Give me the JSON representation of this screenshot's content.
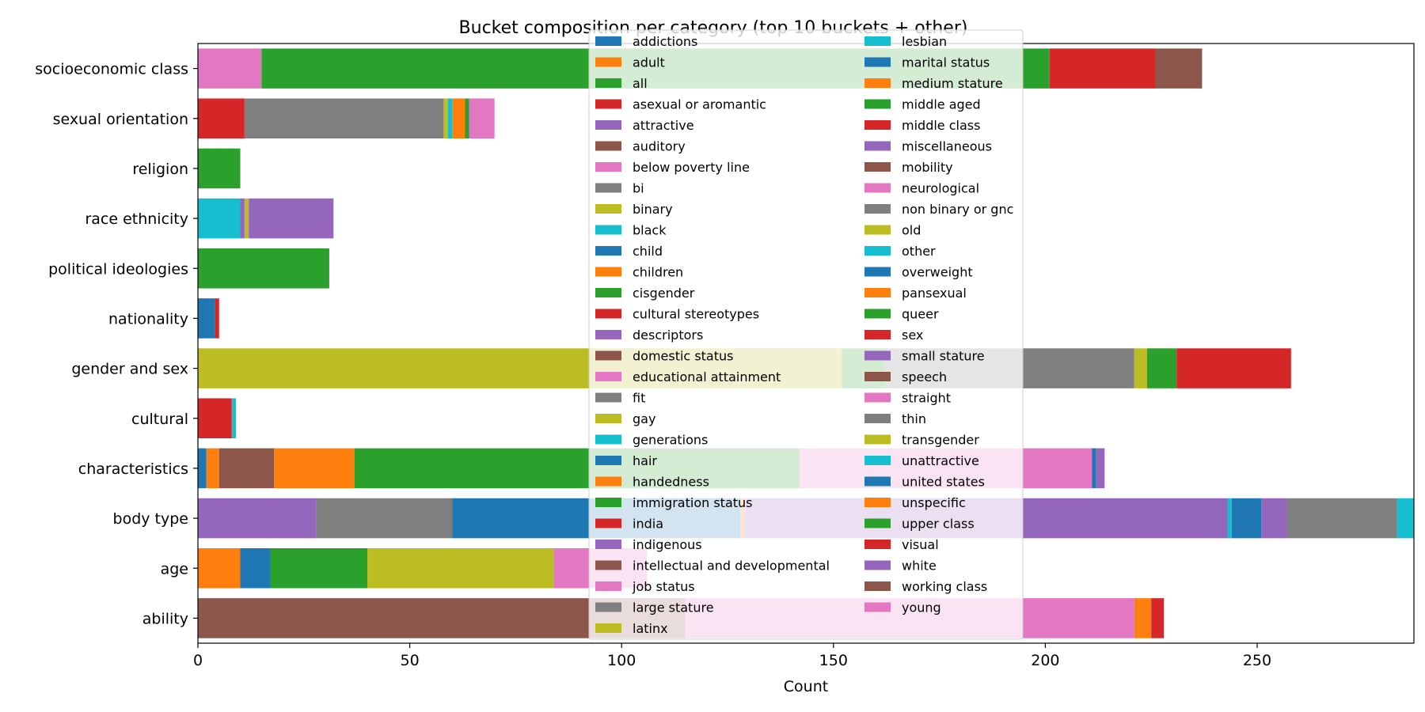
{
  "chart_data": {
    "type": "bar",
    "orientation": "horizontal",
    "stacked": true,
    "title": "Bucket composition per category (top 10 buckets + other)",
    "xlabel": "Count",
    "ylabel": "",
    "xlim": [
      0,
      287
    ],
    "xticks": [
      0,
      50,
      100,
      150,
      200,
      250
    ],
    "grid": false,
    "legend_position": "top-center",
    "categories": [
      "ability",
      "age",
      "body type",
      "characteristics",
      "cultural",
      "gender and sex",
      "nationality",
      "political ideologies",
      "race ethnicity",
      "religion",
      "sexual orientation",
      "socioeconomic class"
    ],
    "series": [
      {
        "name": "addictions",
        "color": "#1f77b4",
        "values": [
          0,
          0,
          0,
          0,
          0,
          0,
          0,
          0,
          0,
          0,
          0,
          0
        ]
      },
      {
        "name": "adult",
        "color": "#ff7f0e",
        "values": [
          0,
          0,
          0,
          0,
          0,
          0,
          0,
          0,
          0,
          0,
          0,
          0
        ]
      },
      {
        "name": "all",
        "color": "#2ca02c",
        "values": [
          0,
          0,
          0,
          0,
          0,
          0,
          0,
          0,
          0,
          0,
          0,
          0
        ]
      },
      {
        "name": "asexual or aromantic",
        "color": "#d62728",
        "values": [
          0,
          0,
          0,
          0,
          0,
          0,
          0,
          0,
          0,
          0,
          11,
          0
        ]
      },
      {
        "name": "attractive",
        "color": "#9467bd",
        "values": [
          0,
          0,
          28,
          0,
          0,
          0,
          0,
          0,
          0,
          0,
          0,
          0
        ]
      },
      {
        "name": "auditory",
        "color": "#8c564b",
        "values": [
          115,
          0,
          0,
          0,
          0,
          0,
          0,
          0,
          0,
          0,
          0,
          0
        ]
      },
      {
        "name": "below poverty line",
        "color": "#e377c2",
        "values": [
          0,
          0,
          0,
          0,
          0,
          0,
          0,
          0,
          0,
          0,
          0,
          15
        ]
      },
      {
        "name": "bi",
        "color": "#7f7f7f",
        "values": [
          0,
          0,
          0,
          0,
          0,
          0,
          0,
          0,
          0,
          0,
          47,
          0
        ]
      },
      {
        "name": "binary",
        "color": "#bcbd22",
        "values": [
          0,
          0,
          0,
          0,
          0,
          152,
          0,
          0,
          0,
          0,
          1,
          0
        ]
      },
      {
        "name": "black",
        "color": "#17becf",
        "values": [
          0,
          0,
          0,
          0,
          0,
          0,
          0,
          0,
          10,
          0,
          1,
          0
        ]
      },
      {
        "name": "child",
        "color": "#1f77b4",
        "values": [
          0,
          0,
          0,
          2,
          0,
          0,
          0,
          0,
          0,
          0,
          0,
          0
        ]
      },
      {
        "name": "children",
        "color": "#ff7f0e",
        "values": [
          0,
          10,
          0,
          3,
          0,
          0,
          0,
          0,
          0,
          0,
          3,
          0
        ]
      },
      {
        "name": "cisgender",
        "color": "#2ca02c",
        "values": [
          0,
          0,
          0,
          0,
          0,
          10,
          0,
          0,
          0,
          0,
          1,
          0
        ]
      },
      {
        "name": "cultural stereotypes",
        "color": "#d62728",
        "values": [
          0,
          0,
          0,
          0,
          8,
          0,
          0,
          0,
          0,
          0,
          0,
          0
        ]
      },
      {
        "name": "descriptors",
        "color": "#9467bd",
        "values": [
          0,
          0,
          0,
          0,
          0,
          0,
          0,
          0,
          1,
          0,
          0,
          0
        ]
      },
      {
        "name": "domestic status",
        "color": "#8c564b",
        "values": [
          0,
          0,
          0,
          13,
          0,
          0,
          0,
          0,
          0,
          0,
          0,
          0
        ]
      },
      {
        "name": "educational attainment",
        "color": "#e377c2",
        "values": [
          0,
          0,
          0,
          0,
          0,
          0,
          0,
          0,
          0,
          0,
          0,
          0
        ]
      },
      {
        "name": "fit",
        "color": "#7f7f7f",
        "values": [
          0,
          0,
          32,
          0,
          0,
          0,
          0,
          0,
          0,
          0,
          0,
          0
        ]
      },
      {
        "name": "gay",
        "color": "#bcbd22",
        "values": [
          0,
          0,
          0,
          0,
          0,
          0,
          0,
          0,
          1,
          0,
          0,
          0
        ]
      },
      {
        "name": "generations",
        "color": "#17becf",
        "values": [
          0,
          0,
          0,
          0,
          1,
          0,
          0,
          0,
          0,
          0,
          0,
          0
        ]
      },
      {
        "name": "hair",
        "color": "#1f77b4",
        "values": [
          0,
          7,
          68,
          0,
          0,
          0,
          4,
          0,
          0,
          0,
          0,
          0
        ]
      },
      {
        "name": "handedness",
        "color": "#ff7f0e",
        "values": [
          0,
          0,
          1,
          19,
          0,
          0,
          0,
          0,
          0,
          0,
          0,
          0
        ]
      },
      {
        "name": "immigration status",
        "color": "#2ca02c",
        "values": [
          0,
          23,
          0,
          105,
          0,
          0,
          0,
          31,
          0,
          10,
          0,
          186
        ]
      },
      {
        "name": "india",
        "color": "#d62728",
        "values": [
          0,
          0,
          0,
          0,
          0,
          0,
          1,
          0,
          0,
          0,
          0,
          25
        ]
      },
      {
        "name": "indigenous",
        "color": "#9467bd",
        "values": [
          0,
          0,
          114,
          0,
          0,
          0,
          0,
          0,
          20,
          0,
          0,
          0
        ]
      },
      {
        "name": "intellectual and developmental",
        "color": "#8c564b",
        "values": [
          0,
          0,
          0,
          0,
          0,
          0,
          0,
          0,
          0,
          0,
          0,
          11
        ]
      },
      {
        "name": "job status",
        "color": "#e377c2",
        "values": [
          106,
          0,
          0,
          69,
          0,
          0,
          0,
          0,
          0,
          0,
          6,
          0
        ]
      },
      {
        "name": "large stature",
        "color": "#7f7f7f",
        "values": [
          0,
          0,
          0,
          0,
          0,
          59,
          0,
          0,
          0,
          0,
          0,
          0
        ]
      },
      {
        "name": "latinx",
        "color": "#bcbd22",
        "values": [
          0,
          44,
          0,
          0,
          0,
          3,
          0,
          0,
          0,
          0,
          0,
          0
        ]
      },
      {
        "name": "lesbian",
        "color": "#17becf",
        "values": [
          0,
          0,
          1,
          0,
          0,
          0,
          0,
          0,
          0,
          0,
          0,
          0
        ]
      },
      {
        "name": "marital status",
        "color": "#1f77b4",
        "values": [
          0,
          0,
          7,
          1,
          0,
          0,
          0,
          0,
          0,
          0,
          0,
          0
        ]
      },
      {
        "name": "medium stature",
        "color": "#ff7f0e",
        "values": [
          1,
          0,
          0,
          0,
          0,
          0,
          0,
          0,
          0,
          0,
          0,
          0
        ]
      },
      {
        "name": "middle aged",
        "color": "#2ca02c",
        "values": [
          0,
          0,
          0,
          0,
          0,
          7,
          0,
          0,
          0,
          0,
          0,
          0
        ]
      },
      {
        "name": "middle class",
        "color": "#d62728",
        "values": [
          0,
          0,
          0,
          0,
          0,
          27,
          0,
          0,
          0,
          0,
          0,
          0
        ]
      },
      {
        "name": "miscellaneous",
        "color": "#9467bd",
        "values": [
          0,
          0,
          6,
          0,
          0,
          0,
          0,
          0,
          0,
          0,
          0,
          0
        ]
      },
      {
        "name": "mobility",
        "color": "#8c564b",
        "values": [
          0,
          0,
          0,
          0,
          0,
          0,
          0,
          0,
          0,
          0,
          0,
          0
        ]
      },
      {
        "name": "neurological",
        "color": "#e377c2",
        "values": [
          0,
          22,
          0,
          0,
          0,
          0,
          0,
          0,
          0,
          0,
          0,
          0
        ]
      },
      {
        "name": "non binary or gnc",
        "color": "#7f7f7f",
        "values": [
          0,
          0,
          26,
          0,
          0,
          0,
          0,
          0,
          0,
          0,
          0,
          0
        ]
      },
      {
        "name": "old",
        "color": "#bcbd22",
        "values": [
          0,
          0,
          0,
          0,
          0,
          0,
          0,
          0,
          0,
          0,
          0,
          0
        ]
      },
      {
        "name": "other",
        "color": "#17becf",
        "values": [
          0,
          0,
          4,
          0,
          0,
          0,
          0,
          0,
          0,
          0,
          0,
          0
        ]
      },
      {
        "name": "overweight",
        "color": "#1f77b4",
        "values": [
          0,
          0,
          0,
          0,
          0,
          0,
          0,
          0,
          0,
          0,
          0,
          0
        ]
      },
      {
        "name": "pansexual",
        "color": "#ff7f0e",
        "values": [
          3,
          0,
          0,
          0,
          0,
          0,
          0,
          0,
          0,
          0,
          0,
          0
        ]
      },
      {
        "name": "queer",
        "color": "#2ca02c",
        "values": [
          0,
          0,
          0,
          0,
          0,
          0,
          0,
          0,
          0,
          0,
          0,
          0
        ]
      },
      {
        "name": "sex",
        "color": "#d62728",
        "values": [
          3,
          0,
          0,
          0,
          0,
          0,
          0,
          0,
          0,
          0,
          0,
          0
        ]
      },
      {
        "name": "small stature",
        "color": "#9467bd",
        "values": [
          0,
          0,
          0,
          2,
          0,
          0,
          0,
          0,
          0,
          0,
          0,
          0
        ]
      },
      {
        "name": "speech",
        "color": "#8c564b",
        "values": [
          0,
          0,
          0,
          0,
          0,
          0,
          0,
          0,
          0,
          0,
          0,
          0
        ]
      },
      {
        "name": "straight",
        "color": "#e377c2",
        "values": [
          0,
          0,
          0,
          0,
          0,
          0,
          0,
          0,
          0,
          0,
          0,
          0
        ]
      },
      {
        "name": "thin",
        "color": "#7f7f7f",
        "values": [
          0,
          0,
          0,
          0,
          0,
          0,
          0,
          0,
          0,
          0,
          0,
          0
        ]
      },
      {
        "name": "transgender",
        "color": "#bcbd22",
        "values": [
          0,
          0,
          0,
          0,
          0,
          0,
          0,
          0,
          0,
          0,
          0,
          0
        ]
      },
      {
        "name": "unattractive",
        "color": "#17becf",
        "values": [
          0,
          0,
          0,
          0,
          0,
          0,
          0,
          0,
          0,
          0,
          0,
          0
        ]
      },
      {
        "name": "united states",
        "color": "#1f77b4",
        "values": [
          0,
          0,
          0,
          0,
          0,
          0,
          0,
          0,
          0,
          0,
          0,
          0
        ]
      },
      {
        "name": "unspecific",
        "color": "#ff7f0e",
        "values": [
          0,
          0,
          0,
          0,
          0,
          0,
          0,
          0,
          0,
          0,
          0,
          0
        ]
      },
      {
        "name": "upper class",
        "color": "#2ca02c",
        "values": [
          0,
          0,
          0,
          0,
          0,
          0,
          0,
          0,
          0,
          0,
          0,
          0
        ]
      },
      {
        "name": "visual",
        "color": "#d62728",
        "values": [
          0,
          0,
          0,
          0,
          0,
          0,
          0,
          0,
          0,
          0,
          0,
          0
        ]
      },
      {
        "name": "white",
        "color": "#9467bd",
        "values": [
          0,
          0,
          0,
          0,
          0,
          0,
          0,
          0,
          0,
          0,
          0,
          0
        ]
      },
      {
        "name": "working class",
        "color": "#8c564b",
        "values": [
          0,
          0,
          0,
          0,
          0,
          0,
          0,
          0,
          0,
          0,
          0,
          0
        ]
      },
      {
        "name": "young",
        "color": "#e377c2",
        "values": [
          0,
          0,
          0,
          0,
          0,
          0,
          0,
          0,
          0,
          0,
          0,
          0
        ]
      }
    ]
  }
}
